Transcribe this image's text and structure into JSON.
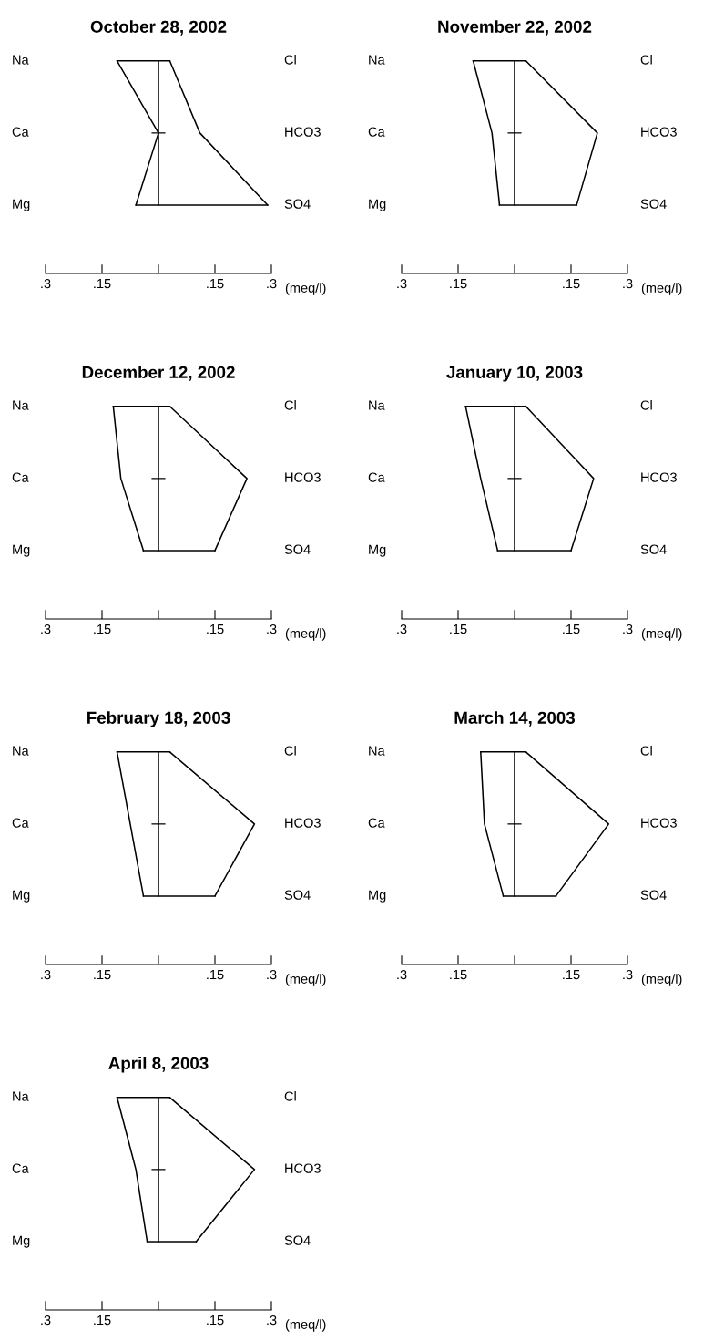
{
  "chart_data": [
    {
      "type": "line",
      "title": "October 28, 2002",
      "orientation": "horizontal",
      "categories": [
        "Na",
        "Ca",
        "Mg"
      ],
      "y2_categories": [
        "Cl",
        "HCO3",
        "SO4"
      ],
      "xlabel": "(meq/l)",
      "xlim": [
        -0.3,
        0.3
      ],
      "xticks": [
        {
          "value": -0.3,
          "label": ".3"
        },
        {
          "value": -0.15,
          "label": ".15"
        },
        {
          "value": 0,
          "label": null
        },
        {
          "value": 0.15,
          "label": ".15"
        },
        {
          "value": 0.3,
          "label": ".3"
        }
      ],
      "series": [
        {
          "color": "#000000",
          "values": [
            -0.11,
            0,
            -0.06
          ]
        },
        {
          "color": "#000000",
          "values": [
            0.03,
            0.11,
            0.29
          ]
        }
      ]
    },
    {
      "type": "line",
      "title": "November 22, 2002",
      "orientation": "horizontal",
      "categories": [
        "Na",
        "Ca",
        "Mg"
      ],
      "y2_categories": [
        "Cl",
        "HCO3",
        "SO4"
      ],
      "xlabel": "(meq/l)",
      "xlim": [
        -0.3,
        0.3
      ],
      "xticks": [
        {
          "value": -0.3,
          "label": ".3"
        },
        {
          "value": -0.15,
          "label": ".15"
        },
        {
          "value": 0,
          "label": null
        },
        {
          "value": 0.15,
          "label": ".15"
        },
        {
          "value": 0.3,
          "label": ".3"
        }
      ],
      "series": [
        {
          "color": "#000000",
          "values": [
            -0.11,
            -0.06,
            -0.04
          ]
        },
        {
          "color": "#000000",
          "values": [
            0.03,
            0.22,
            0.165
          ]
        }
      ]
    },
    {
      "type": "line",
      "title": "December 12, 2002",
      "orientation": "horizontal",
      "categories": [
        "Na",
        "Ca",
        "Mg"
      ],
      "y2_categories": [
        "Cl",
        "HCO3",
        "SO4"
      ],
      "xlabel": "(meq/l)",
      "xlim": [
        -0.3,
        0.3
      ],
      "xticks": [
        {
          "value": -0.3,
          "label": ".3"
        },
        {
          "value": -0.15,
          "label": ".15"
        },
        {
          "value": 0,
          "label": null
        },
        {
          "value": 0.15,
          "label": ".15"
        },
        {
          "value": 0.3,
          "label": ".3"
        }
      ],
      "series": [
        {
          "color": "#000000",
          "values": [
            -0.12,
            -0.1,
            -0.04
          ]
        },
        {
          "color": "#000000",
          "values": [
            0.03,
            0.235,
            0.15
          ]
        }
      ]
    },
    {
      "type": "line",
      "title": "January 10, 2003",
      "orientation": "horizontal",
      "categories": [
        "Na",
        "Ca",
        "Mg"
      ],
      "y2_categories": [
        "Cl",
        "HCO3",
        "SO4"
      ],
      "xlabel": "(meq/l)",
      "xlim": [
        -0.3,
        0.3
      ],
      "xticks": [
        {
          "value": -0.3,
          "label": ".3"
        },
        {
          "value": -0.15,
          "label": ".15"
        },
        {
          "value": 0,
          "label": null
        },
        {
          "value": 0.15,
          "label": ".15"
        },
        {
          "value": 0.3,
          "label": ".3"
        }
      ],
      "series": [
        {
          "color": "#000000",
          "values": [
            -0.13,
            -0.09,
            -0.045
          ]
        },
        {
          "color": "#000000",
          "values": [
            0.03,
            0.21,
            0.15
          ]
        }
      ]
    },
    {
      "type": "line",
      "title": "February 18, 2003",
      "orientation": "horizontal",
      "categories": [
        "Na",
        "Ca",
        "Mg"
      ],
      "y2_categories": [
        "Cl",
        "HCO3",
        "SO4"
      ],
      "xlabel": "(meq/l)",
      "xlim": [
        -0.3,
        0.3
      ],
      "xticks": [
        {
          "value": -0.3,
          "label": ".3"
        },
        {
          "value": -0.15,
          "label": ".15"
        },
        {
          "value": 0,
          "label": null
        },
        {
          "value": 0.15,
          "label": ".15"
        },
        {
          "value": 0.3,
          "label": ".3"
        }
      ],
      "series": [
        {
          "color": "#000000",
          "values": [
            -0.11,
            -0.075,
            -0.04
          ]
        },
        {
          "color": "#000000",
          "values": [
            0.03,
            0.255,
            0.15
          ]
        }
      ]
    },
    {
      "type": "line",
      "title": "March 14, 2003",
      "orientation": "horizontal",
      "categories": [
        "Na",
        "Ca",
        "Mg"
      ],
      "y2_categories": [
        "Cl",
        "HCO3",
        "SO4"
      ],
      "xlabel": "(meq/l)",
      "xlim": [
        -0.3,
        0.3
      ],
      "xticks": [
        {
          "value": -0.3,
          "label": ".3"
        },
        {
          "value": -0.15,
          "label": ".15"
        },
        {
          "value": 0,
          "label": null
        },
        {
          "value": 0.15,
          "label": ".15"
        },
        {
          "value": 0.3,
          "label": ".3"
        }
      ],
      "series": [
        {
          "color": "#000000",
          "values": [
            -0.09,
            -0.08,
            -0.03
          ]
        },
        {
          "color": "#000000",
          "values": [
            0.03,
            0.25,
            0.11
          ]
        }
      ]
    },
    {
      "type": "line",
      "title": "April 8, 2003",
      "orientation": "horizontal",
      "categories": [
        "Na",
        "Ca",
        "Mg"
      ],
      "y2_categories": [
        "Cl",
        "HCO3",
        "SO4"
      ],
      "xlabel": "(meq/l)",
      "xlim": [
        -0.3,
        0.3
      ],
      "xticks": [
        {
          "value": -0.3,
          "label": ".3"
        },
        {
          "value": -0.15,
          "label": ".15"
        },
        {
          "value": 0,
          "label": null
        },
        {
          "value": 0.15,
          "label": ".15"
        },
        {
          "value": 0.3,
          "label": ".3"
        }
      ],
      "series": [
        {
          "color": "#000000",
          "values": [
            -0.11,
            -0.06,
            -0.03
          ]
        },
        {
          "color": "#000000",
          "values": [
            0.03,
            0.255,
            0.1
          ]
        }
      ]
    }
  ]
}
